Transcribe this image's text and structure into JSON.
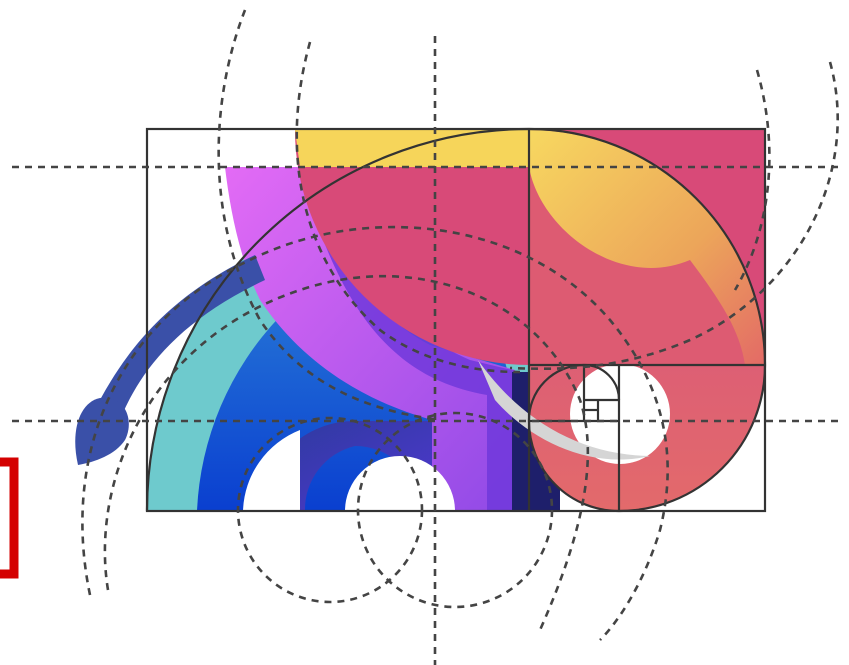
{
  "illustration": {
    "subject": "golden-ratio-spiral-logo-construction",
    "colors": {
      "teal": "#6ECACD",
      "blue": "#1E63D6",
      "deep_blue": "#0B3BC6",
      "indigo": "#2C2F9C",
      "violet": "#7A3FE0",
      "purple": "#C75CF2",
      "magenta": "#E46AF3",
      "pink": "#D84A78",
      "coral": "#E0636E",
      "orange": "#EBA05A",
      "yellow": "#F6D55A",
      "navy": "#1E1F6B",
      "stem": "#3A50A8",
      "guide_line": "#444444",
      "frame_line": "#333333",
      "edge_mark": "#D40000"
    }
  }
}
